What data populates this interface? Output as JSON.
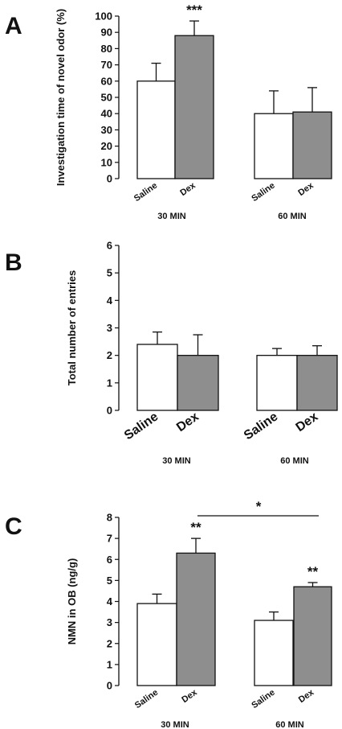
{
  "colors": {
    "saline": "#ffffff",
    "dex": "#8e8e8e",
    "ink": "#111111"
  },
  "chart_data": [
    {
      "type": "bar",
      "panel": "A",
      "ylabel": "Investigation time of novel odor (%)",
      "ylim": [
        0,
        100
      ],
      "yticks": [
        "0",
        "10",
        "20",
        "30",
        "40",
        "50",
        "60",
        "70",
        "80",
        "90",
        "100"
      ],
      "groups": [
        "30 MIN",
        "60 MIN"
      ],
      "categories": [
        "Saline",
        "Dex",
        "Saline",
        "Dex"
      ],
      "values": [
        60,
        88,
        40,
        41
      ],
      "errors": [
        11,
        9,
        14,
        15
      ],
      "significance": [
        {
          "bar": 1,
          "label": "***"
        }
      ]
    },
    {
      "type": "bar",
      "panel": "B",
      "ylabel": "Total number of entries",
      "ylim": [
        0,
        6
      ],
      "yticks": [
        "0",
        "1",
        "2",
        "3",
        "4",
        "5",
        "6"
      ],
      "groups": [
        "30 MIN",
        "60 MIN"
      ],
      "categories": [
        "Saline",
        "Dex",
        "Saline",
        "Dex"
      ],
      "values": [
        2.4,
        2.0,
        2.0,
        2.0
      ],
      "errors": [
        0.45,
        0.75,
        0.25,
        0.35
      ],
      "significance": []
    },
    {
      "type": "bar",
      "panel": "C",
      "ylabel": "NMN in OB (ng/g)",
      "ylim": [
        0,
        8
      ],
      "yticks": [
        "0",
        "1",
        "2",
        "3",
        "4",
        "5",
        "6",
        "7",
        "8"
      ],
      "groups": [
        "30 MIN",
        "60 MIN"
      ],
      "categories": [
        "Saline",
        "Dex",
        "Saline",
        "Dex"
      ],
      "values": [
        3.9,
        6.3,
        3.1,
        4.7
      ],
      "errors": [
        0.45,
        0.7,
        0.4,
        0.2
      ],
      "significance": [
        {
          "bar": 1,
          "label": "**"
        },
        {
          "bar": 3,
          "label": "**"
        }
      ],
      "bracket": {
        "label": "*"
      }
    }
  ]
}
